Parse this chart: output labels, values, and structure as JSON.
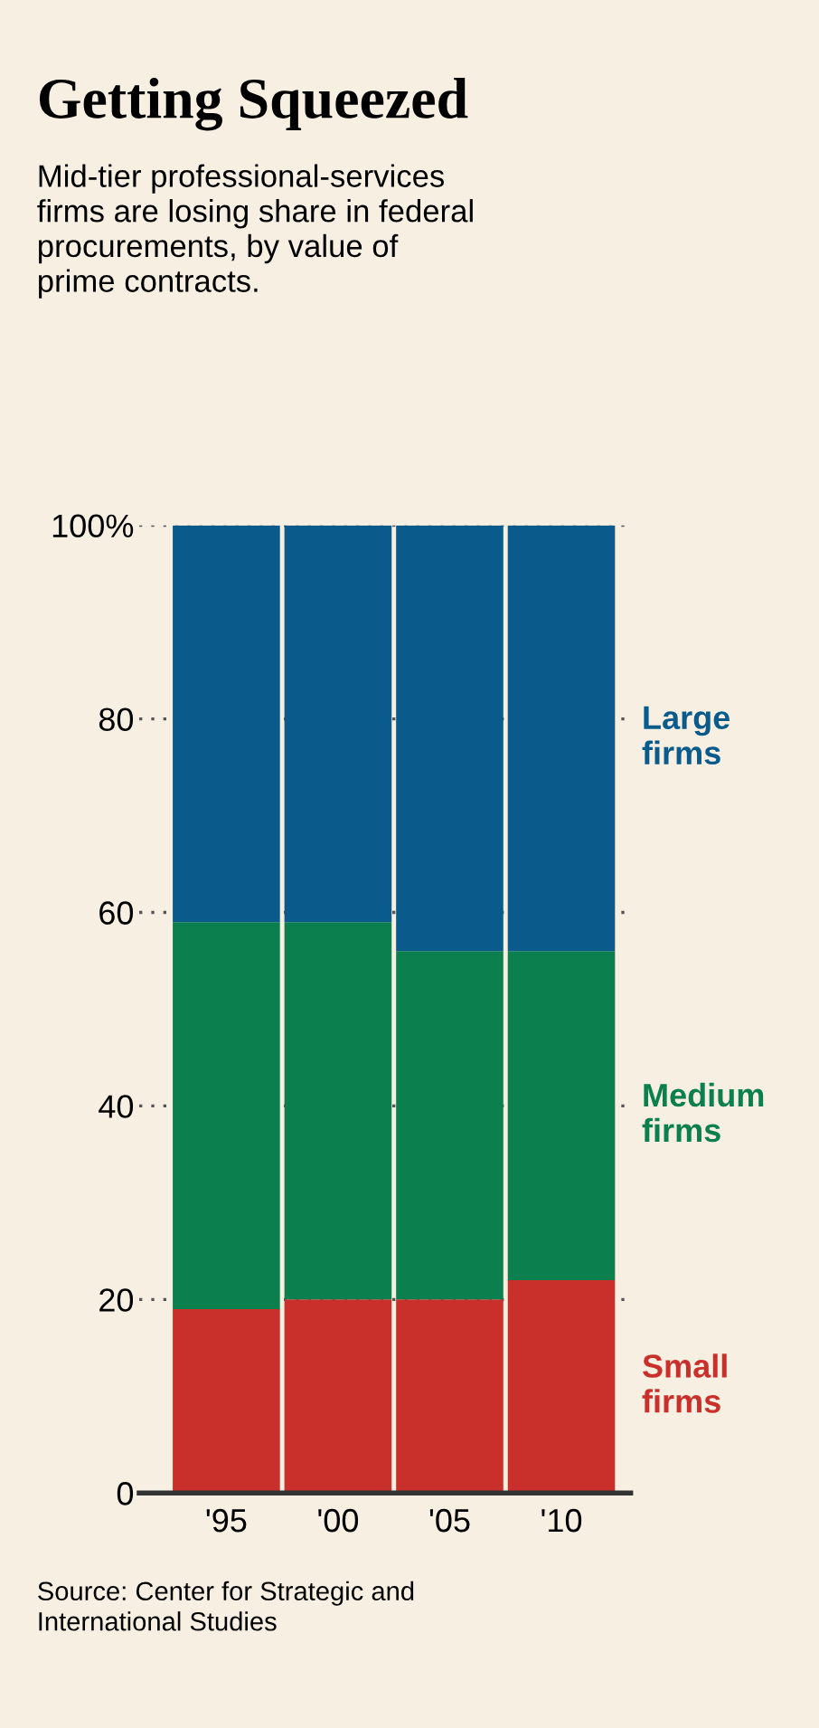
{
  "chart_data": {
    "type": "bar",
    "stacked": true,
    "title": "Getting Squeezed",
    "subtitle": "Mid-tier professional-services\nfirms are losing share in federal\nprocurements, by value of\nprime contracts.",
    "categories": [
      "'95",
      "'00",
      "'05",
      "'10"
    ],
    "series": [
      {
        "name": "Small\nfirms",
        "color": "#c9302c",
        "values": [
          19,
          20,
          20,
          22
        ]
      },
      {
        "name": "Medium\nfirms",
        "color": "#0c7f4e",
        "values": [
          40,
          39,
          36,
          34
        ]
      },
      {
        "name": "Large\nfirms",
        "color": "#0a5a8c",
        "values": [
          41,
          41,
          44,
          44
        ]
      }
    ],
    "ylim": [
      0,
      100
    ],
    "yticks": [
      0,
      20,
      40,
      60,
      80,
      {
        "value": 100,
        "label": "100%"
      }
    ],
    "grid": "y",
    "legend": false,
    "annotations": [
      "Source: Center for Strategic and\nInternational Studies"
    ]
  }
}
